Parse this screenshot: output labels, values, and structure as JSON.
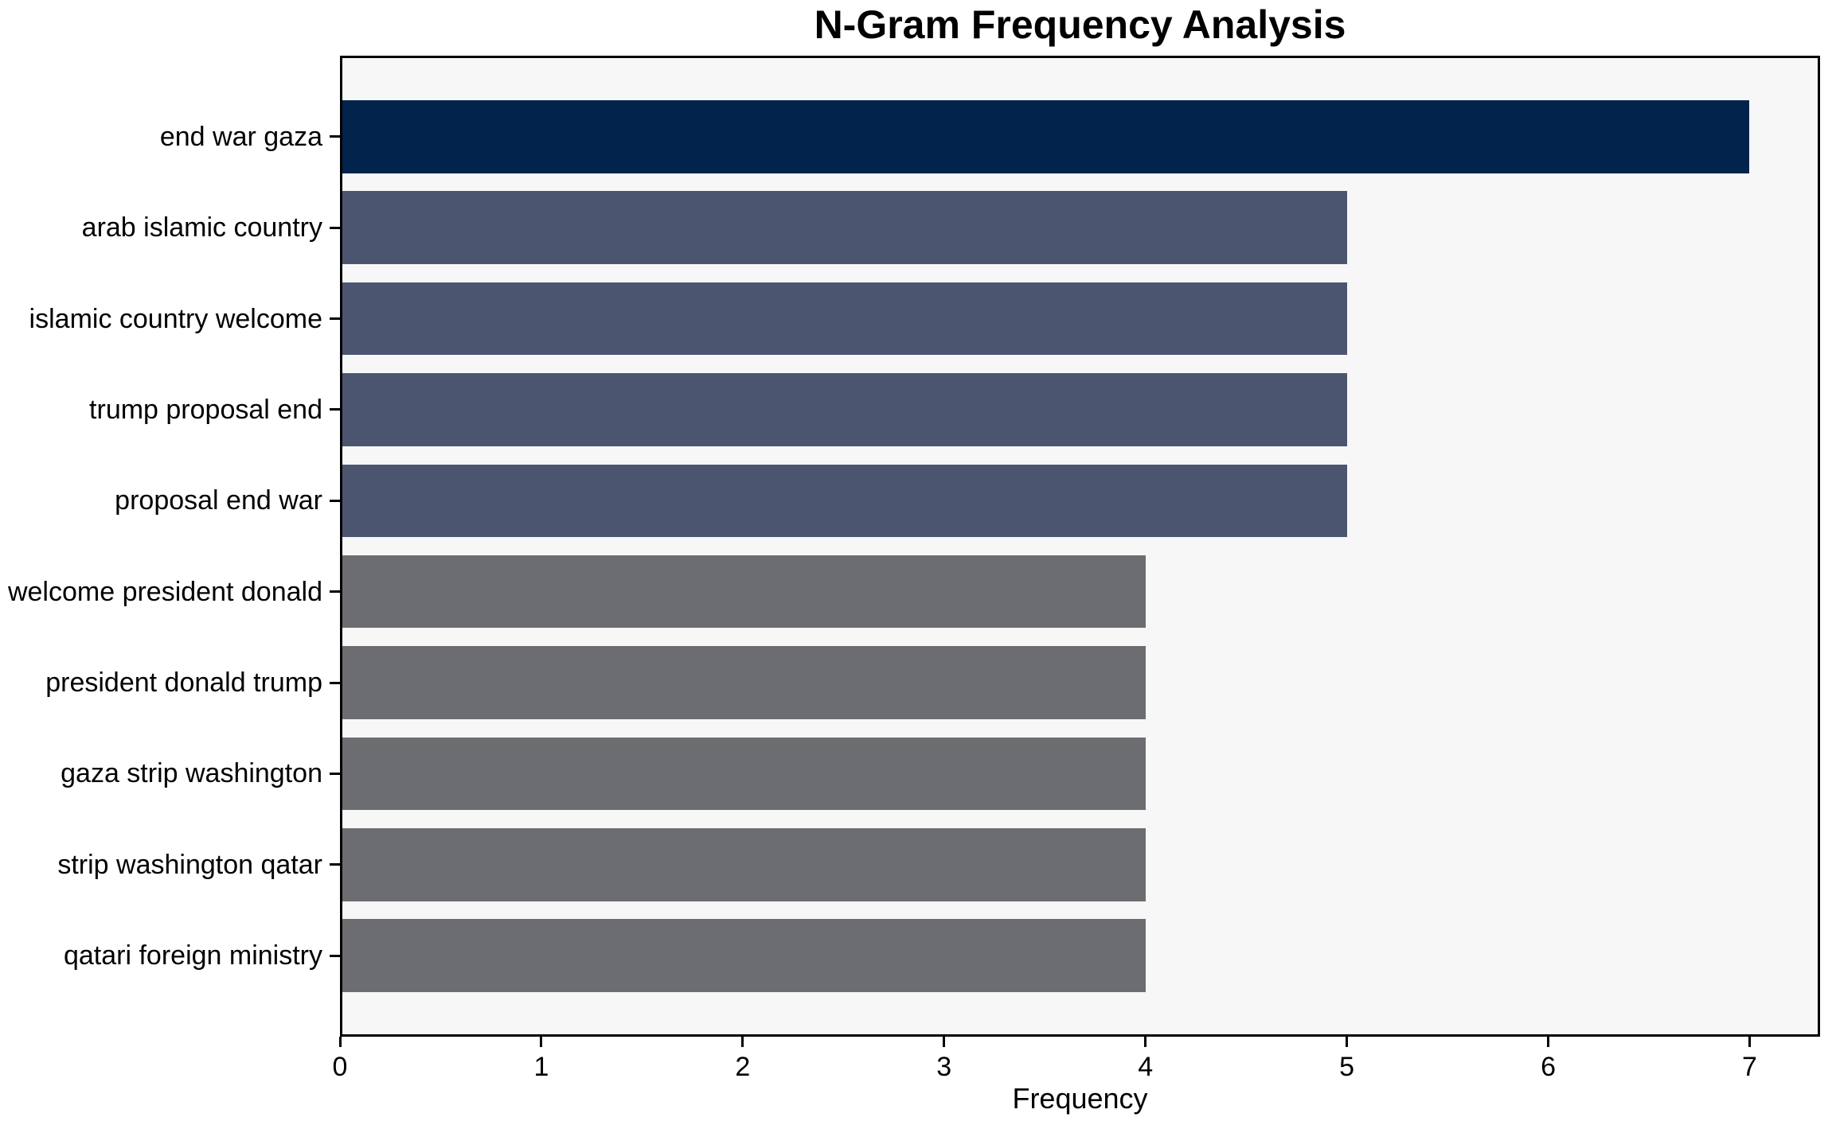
{
  "chart_data": {
    "type": "bar",
    "orientation": "horizontal",
    "title": "N-Gram Frequency Analysis",
    "xlabel": "Frequency",
    "ylabel": "",
    "categories": [
      "end war gaza",
      "arab islamic country",
      "islamic country welcome",
      "trump proposal end",
      "proposal end war",
      "welcome president donald",
      "president donald trump",
      "gaza strip washington",
      "strip washington qatar",
      "qatari foreign ministry"
    ],
    "values": [
      7,
      5,
      5,
      5,
      5,
      4,
      4,
      4,
      4,
      4
    ],
    "bar_colors": [
      "#02234c",
      "#4c5570",
      "#4c5570",
      "#4c5570",
      "#4c5570",
      "#6c6d71",
      "#6c6d71",
      "#6c6d71",
      "#6c6d71",
      "#6c6d71"
    ],
    "xticks": [
      0,
      1,
      2,
      3,
      4,
      5,
      6,
      7
    ],
    "xlim": [
      0,
      7.35
    ],
    "grid": false,
    "legend_position": "none",
    "colors": {
      "figure_bg": "#ffffff",
      "plot_bg": "#f7f7f8",
      "spine": "#000000",
      "text": "#000000"
    }
  }
}
